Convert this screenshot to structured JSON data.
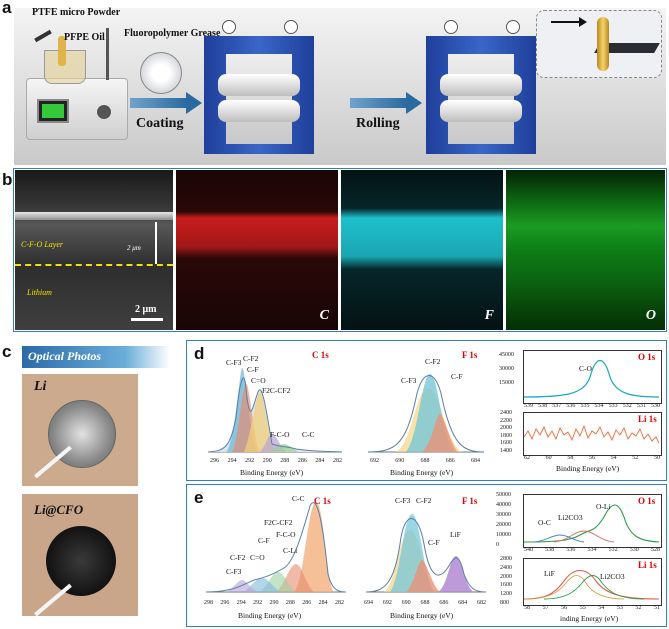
{
  "panels": {
    "a": "a",
    "b": "b",
    "c": "c",
    "d": "d",
    "e": "e"
  },
  "schematic": {
    "ptfe_powder": "PTFE micro Powder",
    "pfpe_oil": "PFPE Oil",
    "grease": "Fluoropolymer Grease",
    "coating": "Coating",
    "rolling": "Rolling"
  },
  "sem": {
    "layer_label": "C-F-O Layer",
    "thickness": "2 μm",
    "substrate": "Lithium",
    "scale_bar": "2 μm",
    "maps": [
      "C",
      "F",
      "O"
    ],
    "map_colors": [
      "#d41e1e",
      "#22c3cf",
      "#1fb02c"
    ]
  },
  "optical": {
    "header": "Optical Photos",
    "sample1": "Li",
    "sample2": "Li@CFO"
  },
  "xps_d": {
    "c1s": {
      "title": "C 1s",
      "peaks": [
        "C-F3",
        "C-F2",
        "C-F",
        "C=O",
        "F2C-CF2",
        "F-C-O",
        "C-C"
      ],
      "xticks": [
        "296",
        "294",
        "292",
        "290",
        "288",
        "286",
        "284",
        "282"
      ],
      "xlabel": "Binding Energy (eV)"
    },
    "f1s": {
      "title": "F 1s",
      "peaks": [
        "C-F3",
        "C-F2",
        "C-F"
      ],
      "xticks": [
        "692",
        "690",
        "688",
        "686",
        "684"
      ],
      "xlabel": "Binding Energy (eV)"
    },
    "o1s": {
      "title": "O 1s",
      "peak": "C-O",
      "yticks": [
        "45000",
        "30000",
        "15000"
      ],
      "xticks": [
        "539",
        "538",
        "537",
        "536",
        "535",
        "534",
        "533",
        "532",
        "531",
        "530"
      ]
    },
    "li1s": {
      "title": "Li 1s",
      "yticks": [
        "2400",
        "2200",
        "2000",
        "1800",
        "1600",
        "1400"
      ],
      "xticks": [
        "62",
        "60",
        "58",
        "56",
        "54",
        "52",
        "50"
      ],
      "xlabel": "Binding Energy (eV)"
    }
  },
  "xps_e": {
    "c1s": {
      "title": "C 1s",
      "peaks": [
        "C-C",
        "F2C-CF2",
        "F-C-O",
        "C-F",
        "C-Li",
        "C=O",
        "C-F2",
        "C-F3"
      ],
      "xticks": [
        "298",
        "296",
        "294",
        "292",
        "290",
        "288",
        "286",
        "284",
        "282"
      ],
      "xlabel": "Binding Energy (eV)"
    },
    "f1s": {
      "title": "F 1s",
      "peaks": [
        "C-F3",
        "C-F2",
        "C-F",
        "LiF"
      ],
      "xticks": [
        "694",
        "692",
        "690",
        "688",
        "686",
        "684",
        "682"
      ],
      "xlabel": "Binding Energy (eV)"
    },
    "o1s": {
      "title": "O 1s",
      "peaks": [
        "O-Li",
        "Li2CO3",
        "O-C"
      ],
      "yticks": [
        "50000",
        "40000",
        "30000",
        "20000",
        "10000",
        "0"
      ],
      "xticks": [
        "540",
        "538",
        "536",
        "534",
        "532",
        "530",
        "528"
      ]
    },
    "li1s": {
      "title": "Li 1s",
      "peaks": [
        "LiF",
        "Li2CO3"
      ],
      "yticks": [
        "2800",
        "2400",
        "2000",
        "1600",
        "1200",
        "800"
      ],
      "xticks": [
        "58",
        "57",
        "56",
        "55",
        "54",
        "53",
        "52",
        "51"
      ],
      "xlabel": "inding Energy (eV)"
    }
  }
}
